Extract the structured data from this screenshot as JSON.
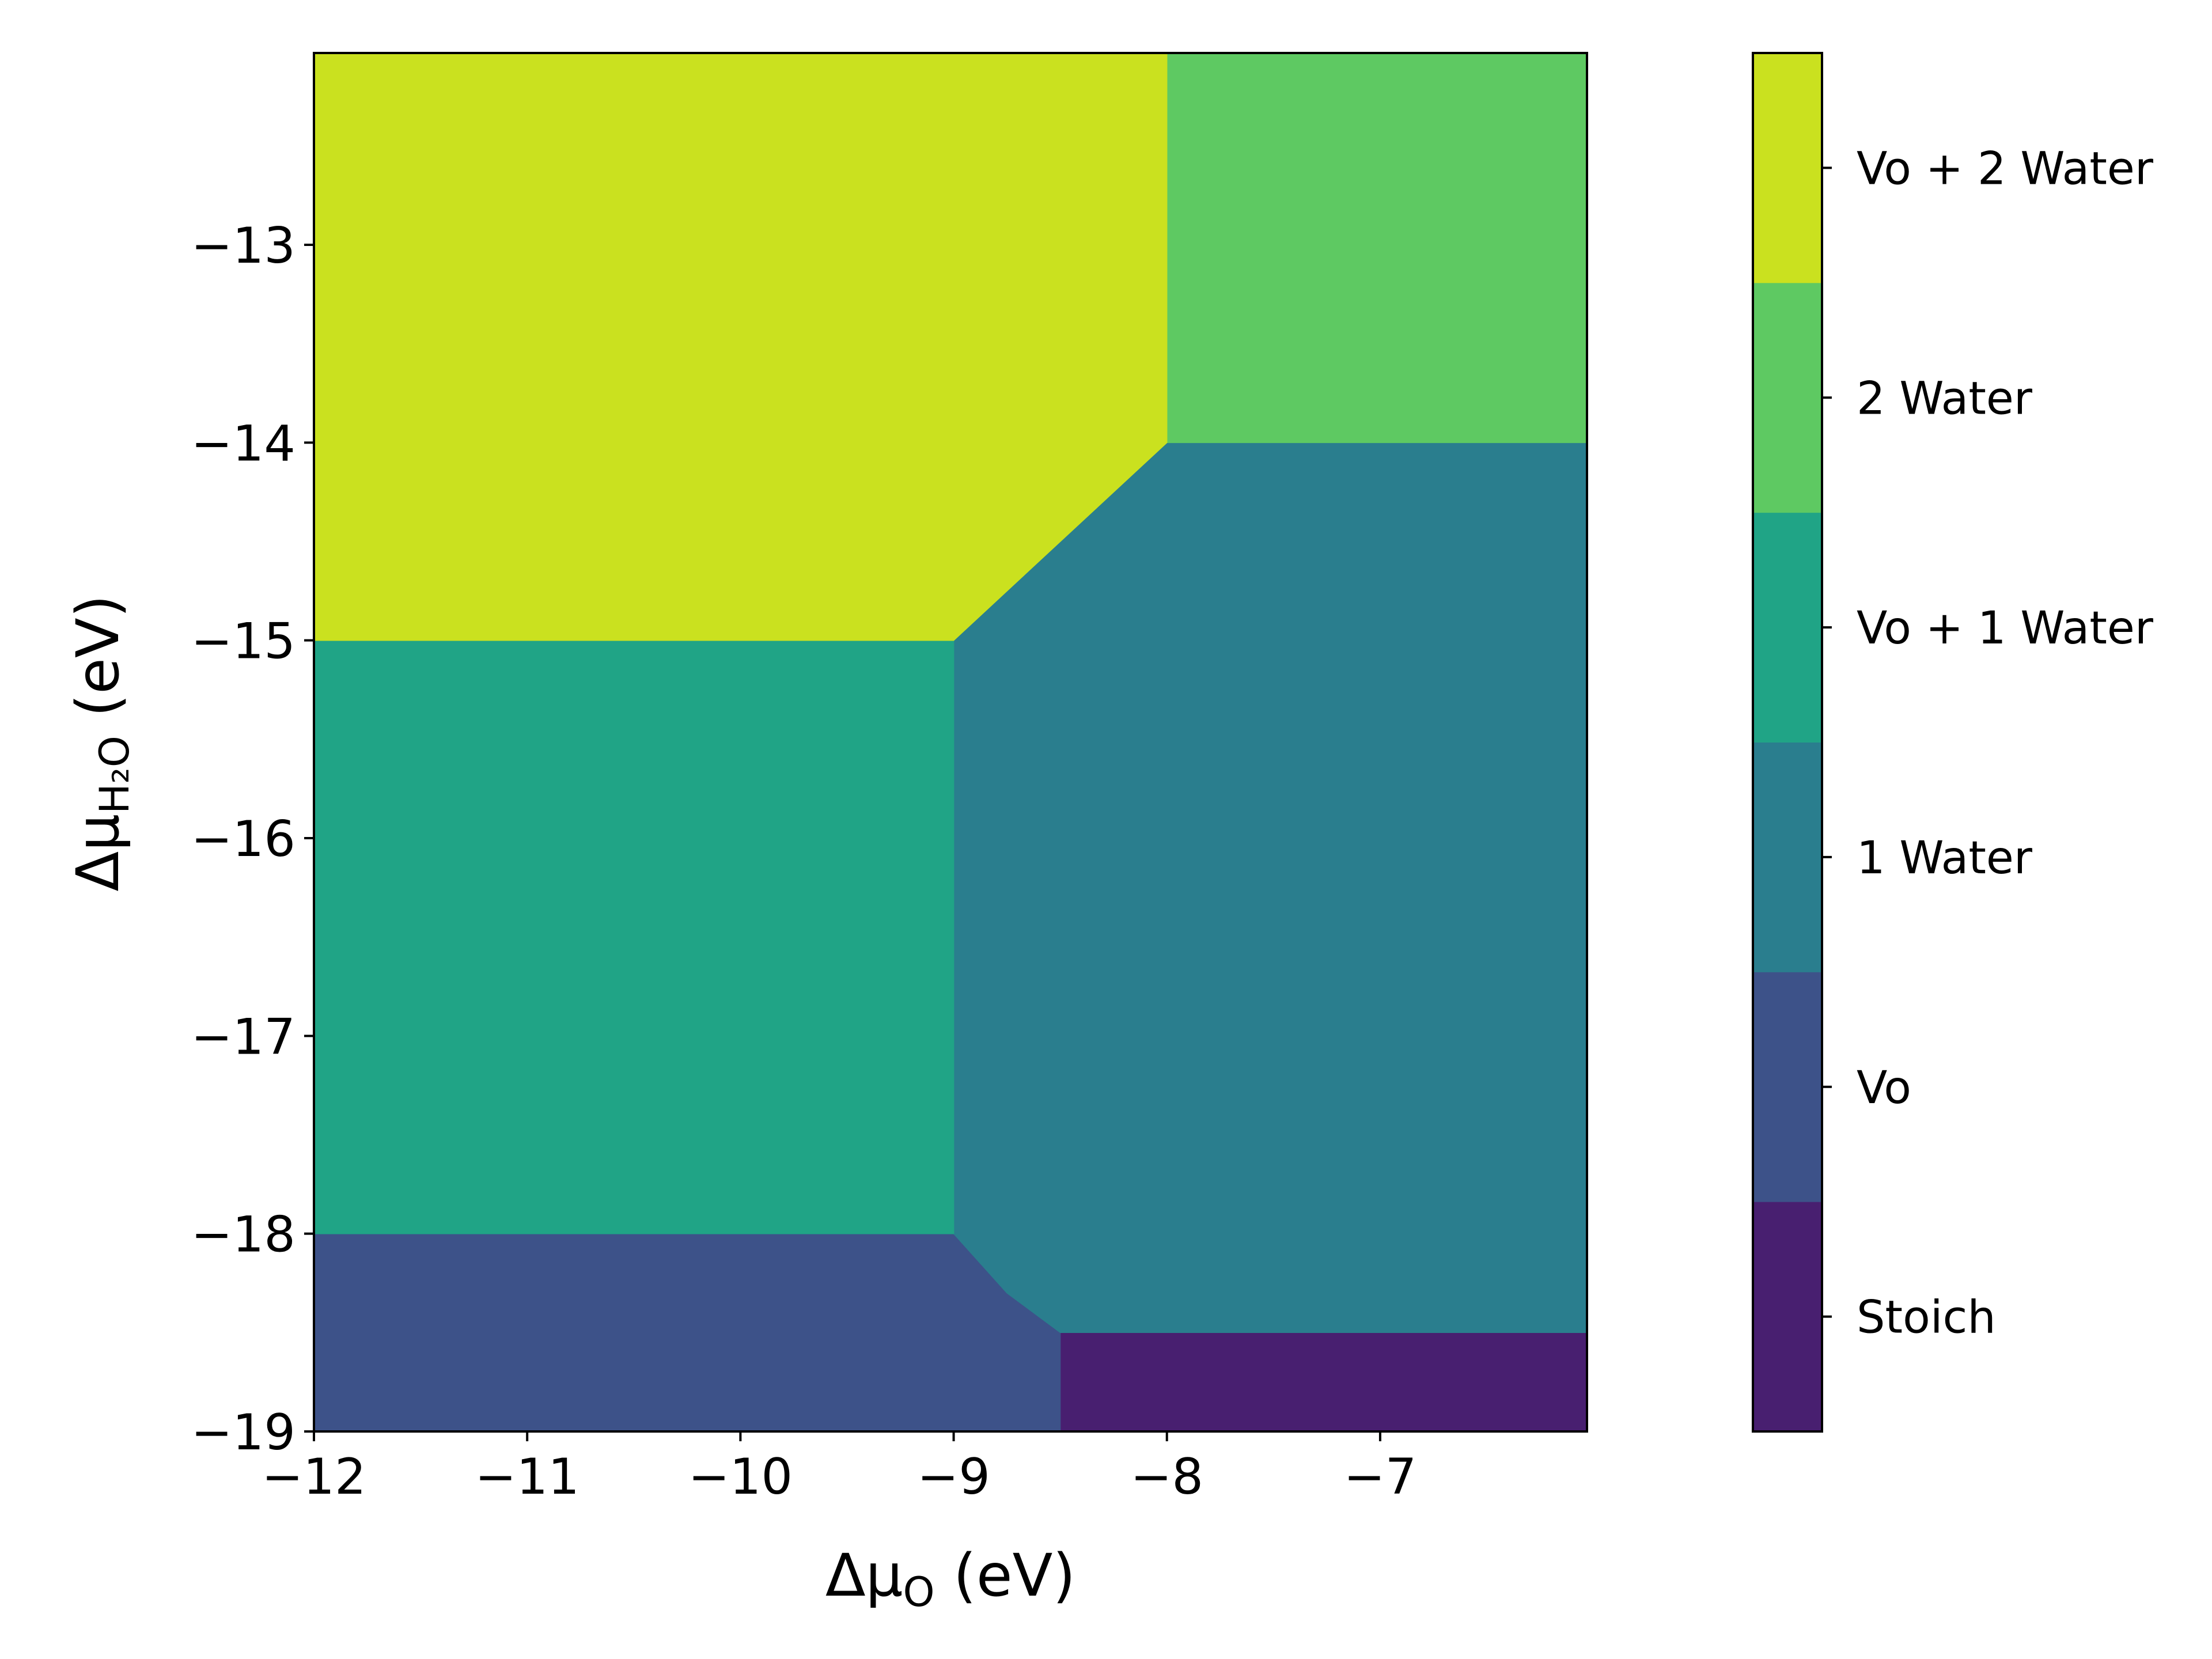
{
  "chart_data": {
    "type": "heatmap",
    "subtype": "filled-contour phase diagram",
    "title": "",
    "xlabel": "Δμ_O (eV)",
    "ylabel": "Δμ_H2O (eV)",
    "xlabel_parts": {
      "symbol": "Δμ",
      "subscript": "O",
      "unit": " (eV)"
    },
    "ylabel_parts": {
      "symbol": "Δμ",
      "subscript": "H₂O",
      "unit": " (eV)"
    },
    "xlim": [
      -12,
      -6.03
    ],
    "ylim": [
      -19,
      -12.03
    ],
    "xticks": [
      -12,
      -11,
      -10,
      -9,
      -8,
      -7
    ],
    "yticks": [
      -19,
      -18,
      -17,
      -16,
      -15,
      -14,
      -13
    ],
    "xtick_labels": [
      "−12",
      "−11",
      "−10",
      "−9",
      "−8",
      "−7"
    ],
    "ytick_labels": [
      "−19",
      "−18",
      "−17",
      "−16",
      "−15",
      "−14",
      "−13"
    ],
    "grid": false,
    "legend": "colorbar-right",
    "phases": [
      {
        "name": "Stoich",
        "color": "#481f70",
        "polygon": [
          [
            -8.5,
            -19
          ],
          [
            -6.03,
            -19
          ],
          [
            -6.03,
            -18.5
          ],
          [
            -8.5,
            -18.5
          ]
        ]
      },
      {
        "name": "Vo",
        "color": "#3d5289",
        "polygon": [
          [
            -12,
            -19
          ],
          [
            -8.5,
            -19
          ],
          [
            -8.5,
            -18.5
          ],
          [
            -8.75,
            -18.3
          ],
          [
            -9,
            -18
          ],
          [
            -12,
            -18
          ]
        ]
      },
      {
        "name": "1 Water",
        "color": "#2a7e8e",
        "polygon": [
          [
            -9,
            -18
          ],
          [
            -8.75,
            -18.3
          ],
          [
            -8.5,
            -18.5
          ],
          [
            -6.03,
            -18.5
          ],
          [
            -6.03,
            -14
          ],
          [
            -8,
            -14
          ],
          [
            -9,
            -15
          ]
        ]
      },
      {
        "name": "Vo + 1 Water",
        "color": "#20a486",
        "polygon": [
          [
            -12,
            -18
          ],
          [
            -9,
            -18
          ],
          [
            -9,
            -15
          ],
          [
            -12,
            -15
          ]
        ]
      },
      {
        "name": "2 Water",
        "color": "#5ec962",
        "polygon": [
          [
            -8,
            -14
          ],
          [
            -6.03,
            -14
          ],
          [
            -6.03,
            -12.03
          ],
          [
            -8,
            -12.03
          ]
        ]
      },
      {
        "name": "Vo + 2 Water",
        "color": "#cae11f",
        "polygon": [
          [
            -12,
            -15
          ],
          [
            -9,
            -15
          ],
          [
            -8,
            -14
          ],
          [
            -8,
            -12.03
          ],
          [
            -12,
            -12.03
          ]
        ]
      }
    ],
    "colorbar": {
      "labels": [
        "Stoich",
        "Vo",
        "1 Water",
        "Vo + 1 Water",
        "2 Water",
        "Vo + 2 Water"
      ],
      "colors": [
        "#481f70",
        "#3d5289",
        "#2a7e8e",
        "#20a486",
        "#5ec962",
        "#cae11f"
      ]
    }
  }
}
